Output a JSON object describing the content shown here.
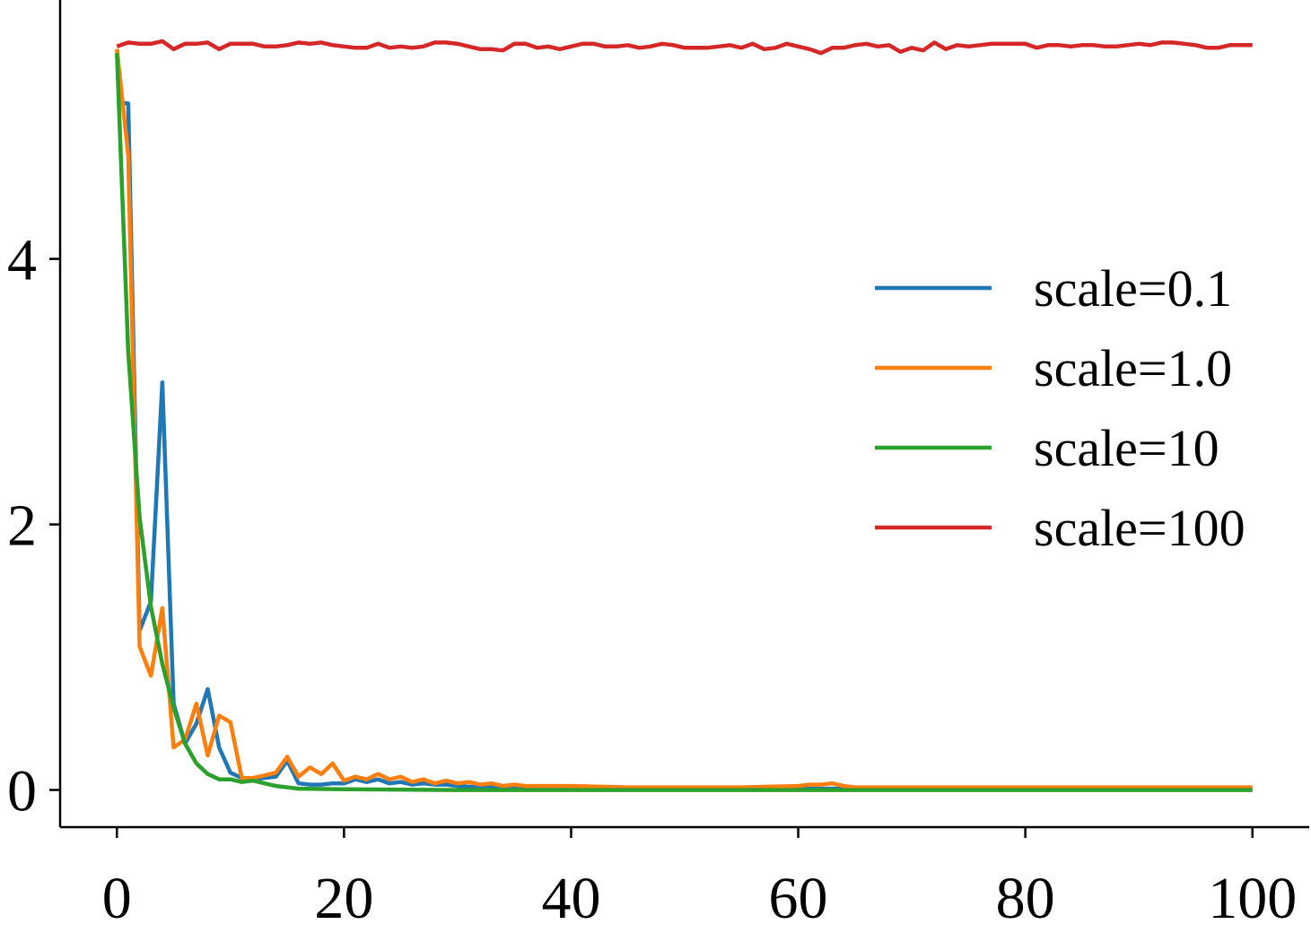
{
  "chart_data": {
    "type": "line",
    "title": "",
    "xlabel": "",
    "ylabel": "",
    "xlim": [
      -5,
      105
    ],
    "ylim": [
      -0.28,
      5.95
    ],
    "x_ticks": [
      0,
      20,
      40,
      60,
      80,
      100
    ],
    "x_tick_labels": [
      "0",
      "20",
      "40",
      "60",
      "80",
      "100"
    ],
    "y_ticks": [
      0,
      2,
      4
    ],
    "y_tick_labels": [
      "0",
      "2",
      "4"
    ],
    "spines": "left-bottom",
    "grid": false,
    "legend_position": "center-right",
    "series": [
      {
        "name": "scale=0.1",
        "color": "#1f77b4",
        "points": [
          [
            0,
            5.18
          ],
          [
            1,
            5.17
          ],
          [
            2,
            1.2
          ],
          [
            3,
            1.42
          ],
          [
            4,
            3.07
          ],
          [
            5,
            0.65
          ],
          [
            6,
            0.35
          ],
          [
            7,
            0.5
          ],
          [
            8,
            0.76
          ],
          [
            9,
            0.32
          ],
          [
            10,
            0.13
          ],
          [
            11,
            0.09
          ],
          [
            12,
            0.08
          ],
          [
            13,
            0.09
          ],
          [
            14,
            0.1
          ],
          [
            15,
            0.22
          ],
          [
            16,
            0.05
          ],
          [
            17,
            0.04
          ],
          [
            18,
            0.04
          ],
          [
            19,
            0.05
          ],
          [
            20,
            0.05
          ],
          [
            21,
            0.08
          ],
          [
            22,
            0.06
          ],
          [
            23,
            0.08
          ],
          [
            24,
            0.05
          ],
          [
            25,
            0.06
          ],
          [
            26,
            0.04
          ],
          [
            27,
            0.05
          ],
          [
            28,
            0.04
          ],
          [
            29,
            0.04
          ],
          [
            30,
            0.03
          ],
          [
            32,
            0.02
          ],
          [
            35,
            0.02
          ],
          [
            40,
            0.01
          ],
          [
            50,
            0.01
          ],
          [
            60,
            0.01
          ],
          [
            70,
            0.01
          ],
          [
            80,
            0.01
          ],
          [
            90,
            0.01
          ],
          [
            100,
            0.01
          ]
        ]
      },
      {
        "name": "scale=1.0",
        "color": "#ff7f0e",
        "points": [
          [
            0,
            5.58
          ],
          [
            1,
            4.78
          ],
          [
            2,
            1.08
          ],
          [
            3,
            0.86
          ],
          [
            4,
            1.37
          ],
          [
            5,
            0.32
          ],
          [
            6,
            0.38
          ],
          [
            7,
            0.65
          ],
          [
            8,
            0.26
          ],
          [
            9,
            0.56
          ],
          [
            10,
            0.51
          ],
          [
            11,
            0.09
          ],
          [
            12,
            0.09
          ],
          [
            13,
            0.11
          ],
          [
            14,
            0.13
          ],
          [
            15,
            0.25
          ],
          [
            16,
            0.1
          ],
          [
            17,
            0.17
          ],
          [
            18,
            0.12
          ],
          [
            19,
            0.2
          ],
          [
            20,
            0.07
          ],
          [
            21,
            0.1
          ],
          [
            22,
            0.08
          ],
          [
            23,
            0.12
          ],
          [
            24,
            0.08
          ],
          [
            25,
            0.1
          ],
          [
            26,
            0.06
          ],
          [
            27,
            0.08
          ],
          [
            28,
            0.05
          ],
          [
            29,
            0.07
          ],
          [
            30,
            0.05
          ],
          [
            31,
            0.06
          ],
          [
            32,
            0.04
          ],
          [
            33,
            0.05
          ],
          [
            34,
            0.03
          ],
          [
            35,
            0.04
          ],
          [
            36,
            0.03
          ],
          [
            38,
            0.03
          ],
          [
            40,
            0.03
          ],
          [
            45,
            0.02
          ],
          [
            50,
            0.02
          ],
          [
            55,
            0.02
          ],
          [
            60,
            0.03
          ],
          [
            61,
            0.04
          ],
          [
            62,
            0.04
          ],
          [
            63,
            0.05
          ],
          [
            64,
            0.03
          ],
          [
            65,
            0.02
          ],
          [
            70,
            0.02
          ],
          [
            80,
            0.02
          ],
          [
            90,
            0.02
          ],
          [
            100,
            0.02
          ]
        ]
      },
      {
        "name": "scale=10",
        "color": "#2ca02c",
        "points": [
          [
            0,
            5.55
          ],
          [
            1,
            3.3
          ],
          [
            2,
            2.05
          ],
          [
            3,
            1.38
          ],
          [
            4,
            0.95
          ],
          [
            5,
            0.62
          ],
          [
            6,
            0.35
          ],
          [
            7,
            0.2
          ],
          [
            8,
            0.12
          ],
          [
            9,
            0.08
          ],
          [
            10,
            0.08
          ],
          [
            11,
            0.06
          ],
          [
            12,
            0.07
          ],
          [
            13,
            0.05
          ],
          [
            14,
            0.03
          ],
          [
            15,
            0.02
          ],
          [
            16,
            0.01
          ],
          [
            20,
            0.005
          ],
          [
            30,
            0.0
          ],
          [
            40,
            0.0
          ],
          [
            50,
            0.0
          ],
          [
            60,
            0.0
          ],
          [
            70,
            0.0
          ],
          [
            80,
            0.0
          ],
          [
            90,
            0.0
          ],
          [
            100,
            0.0
          ]
        ]
      },
      {
        "name": "scale=100",
        "color": "#d62728",
        "points": [
          [
            0,
            5.6
          ],
          [
            1,
            5.63
          ],
          [
            2,
            5.62
          ],
          [
            3,
            5.62
          ],
          [
            4,
            5.64
          ],
          [
            5,
            5.58
          ],
          [
            6,
            5.62
          ],
          [
            7,
            5.62
          ],
          [
            8,
            5.63
          ],
          [
            9,
            5.58
          ],
          [
            10,
            5.62
          ],
          [
            11,
            5.62
          ],
          [
            12,
            5.62
          ],
          [
            13,
            5.6
          ],
          [
            14,
            5.6
          ],
          [
            15,
            5.61
          ],
          [
            16,
            5.63
          ],
          [
            17,
            5.62
          ],
          [
            18,
            5.63
          ],
          [
            19,
            5.61
          ],
          [
            20,
            5.6
          ],
          [
            21,
            5.59
          ],
          [
            22,
            5.59
          ],
          [
            23,
            5.62
          ],
          [
            24,
            5.59
          ],
          [
            25,
            5.6
          ],
          [
            26,
            5.59
          ],
          [
            27,
            5.6
          ],
          [
            28,
            5.63
          ],
          [
            29,
            5.63
          ],
          [
            30,
            5.62
          ],
          [
            31,
            5.6
          ],
          [
            32,
            5.58
          ],
          [
            33,
            5.58
          ],
          [
            34,
            5.57
          ],
          [
            35,
            5.62
          ],
          [
            36,
            5.62
          ],
          [
            37,
            5.59
          ],
          [
            38,
            5.6
          ],
          [
            39,
            5.58
          ],
          [
            40,
            5.6
          ],
          [
            41,
            5.62
          ],
          [
            42,
            5.62
          ],
          [
            43,
            5.6
          ],
          [
            44,
            5.6
          ],
          [
            45,
            5.61
          ],
          [
            46,
            5.59
          ],
          [
            47,
            5.6
          ],
          [
            48,
            5.62
          ],
          [
            49,
            5.61
          ],
          [
            50,
            5.59
          ],
          [
            51,
            5.59
          ],
          [
            52,
            5.59
          ],
          [
            53,
            5.6
          ],
          [
            54,
            5.61
          ],
          [
            55,
            5.59
          ],
          [
            56,
            5.62
          ],
          [
            57,
            5.58
          ],
          [
            58,
            5.59
          ],
          [
            59,
            5.62
          ],
          [
            60,
            5.6
          ],
          [
            61,
            5.58
          ],
          [
            62,
            5.55
          ],
          [
            63,
            5.59
          ],
          [
            64,
            5.59
          ],
          [
            65,
            5.61
          ],
          [
            66,
            5.62
          ],
          [
            67,
            5.6
          ],
          [
            68,
            5.61
          ],
          [
            69,
            5.56
          ],
          [
            70,
            5.59
          ],
          [
            71,
            5.57
          ],
          [
            72,
            5.63
          ],
          [
            73,
            5.58
          ],
          [
            74,
            5.61
          ],
          [
            75,
            5.6
          ],
          [
            76,
            5.61
          ],
          [
            77,
            5.62
          ],
          [
            78,
            5.62
          ],
          [
            79,
            5.62
          ],
          [
            80,
            5.62
          ],
          [
            81,
            5.59
          ],
          [
            82,
            5.61
          ],
          [
            83,
            5.61
          ],
          [
            84,
            5.6
          ],
          [
            85,
            5.61
          ],
          [
            86,
            5.61
          ],
          [
            87,
            5.6
          ],
          [
            88,
            5.6
          ],
          [
            89,
            5.61
          ],
          [
            90,
            5.62
          ],
          [
            91,
            5.61
          ],
          [
            92,
            5.63
          ],
          [
            93,
            5.63
          ],
          [
            94,
            5.62
          ],
          [
            95,
            5.61
          ],
          [
            96,
            5.59
          ],
          [
            97,
            5.59
          ],
          [
            98,
            5.61
          ],
          [
            99,
            5.61
          ],
          [
            100,
            5.61
          ]
        ]
      }
    ]
  }
}
